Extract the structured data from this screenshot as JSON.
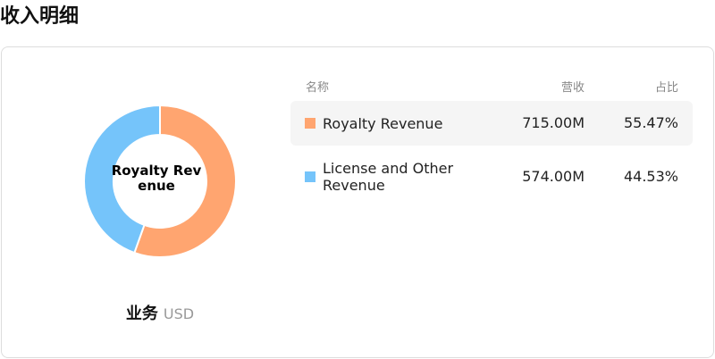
{
  "title": "收入明细",
  "chart_data": {
    "type": "donut",
    "center_label": "Royalty Revenue",
    "footer_title": "业务",
    "footer_unit": "USD",
    "table_headers": [
      "名称",
      "营收",
      "占比"
    ],
    "categories": [
      "Royalty Revenue",
      "License and Other Revenue"
    ],
    "values": [
      715000000,
      574000000
    ],
    "value_labels": [
      "715.00M",
      "574.00M"
    ],
    "share_labels": [
      "55.47%",
      "44.53%"
    ],
    "colors": [
      "#ffa570",
      "#75c4fa"
    ]
  }
}
